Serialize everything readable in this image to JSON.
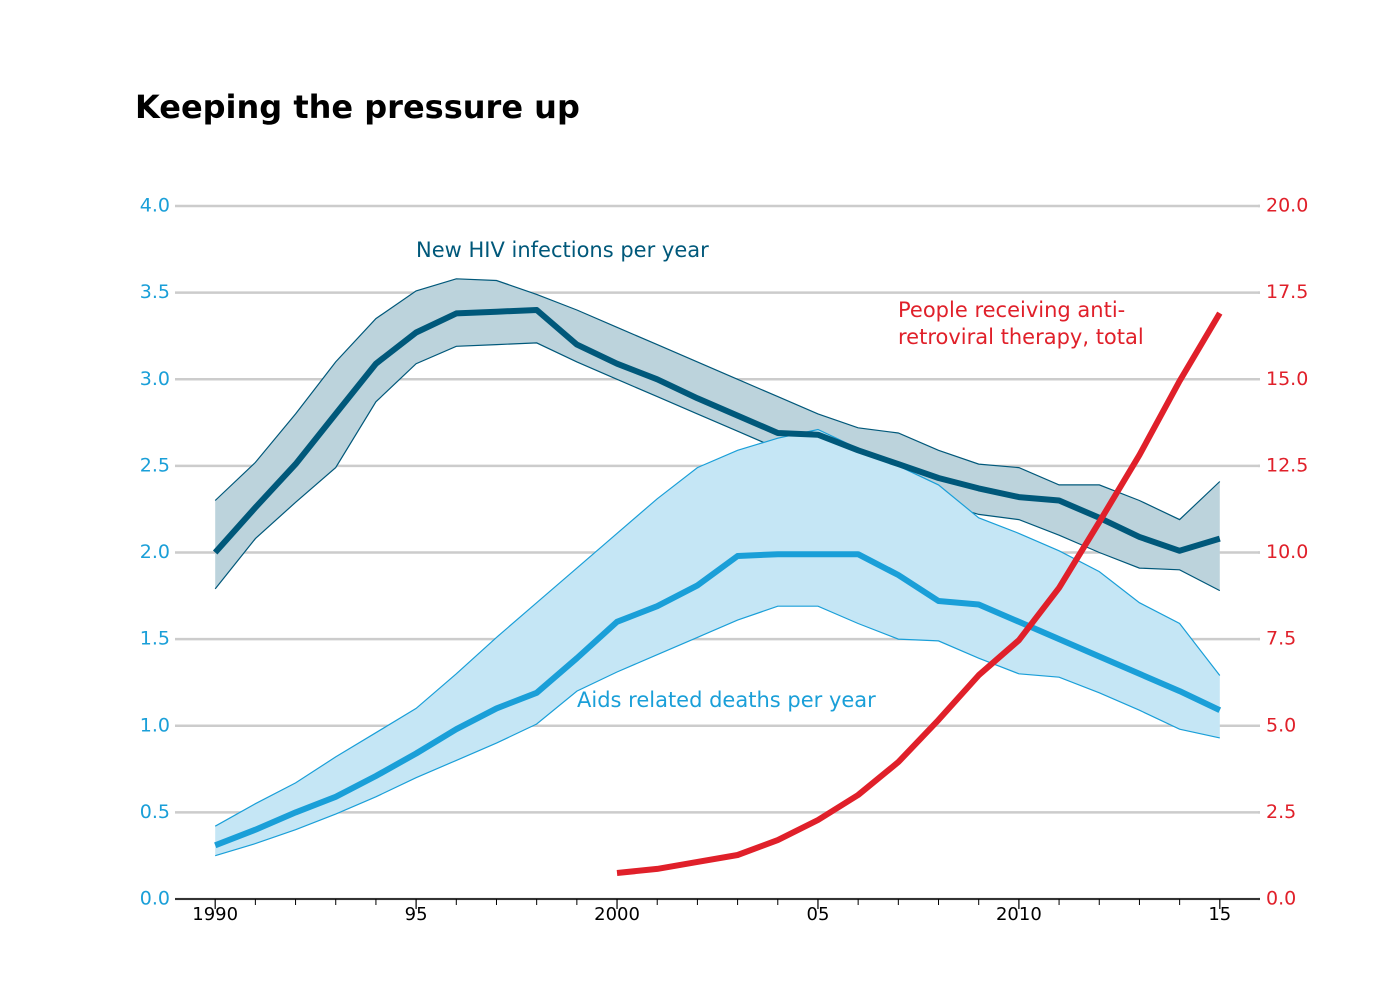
{
  "chart_data": {
    "type": "line",
    "title": "Keeping the pressure up",
    "x": [
      1990,
      1991,
      1992,
      1993,
      1994,
      1995,
      1996,
      1997,
      1998,
      1999,
      2000,
      2001,
      2002,
      2003,
      2004,
      2005,
      2006,
      2007,
      2008,
      2009,
      2010,
      2011,
      2012,
      2013,
      2014,
      2015
    ],
    "xlim": [
      1989,
      2016
    ],
    "xticks": [
      1990,
      {
        "value": 1995,
        "label": "95"
      },
      2000,
      {
        "value": 2005,
        "label": "05"
      },
      2010,
      {
        "value": 2015,
        "label": "15"
      }
    ],
    "xminor_ticks": [
      1991,
      1992,
      1993,
      1994,
      1996,
      1997,
      1998,
      1999,
      2001,
      2002,
      2003,
      2004,
      2006,
      2007,
      2008,
      2009,
      2011,
      2012,
      2013,
      2014
    ],
    "ylim": [
      0,
      4
    ],
    "yticks": [
      {
        "value": 0,
        "label": "0.0"
      },
      0.5,
      {
        "value": 1,
        "label": "1.0"
      },
      1.5,
      {
        "value": 2,
        "label": "2.0"
      },
      2.5,
      {
        "value": 3,
        "label": "3.0"
      },
      3.5,
      {
        "value": 4,
        "label": "4.0"
      }
    ],
    "y_color": "#1a9fd8",
    "y2lim": [
      0,
      20
    ],
    "y2ticks": [
      {
        "value": 0,
        "label": "0.0"
      },
      2.5,
      {
        "value": 5,
        "label": "5.0"
      },
      7.5,
      {
        "value": 10,
        "label": "10.0"
      },
      12.5,
      {
        "value": 15,
        "label": "15.0"
      },
      17.5,
      {
        "value": 20,
        "label": "20.0"
      }
    ],
    "y2_color": "#e0202a",
    "grid": true,
    "series": [
      {
        "name": [
          "New HIV infections per year"
        ],
        "color": "#00587a",
        "band_color": "#bcd3dc",
        "values": [
          2.0,
          2.26,
          2.51,
          2.8,
          3.09,
          3.27,
          3.38,
          3.39,
          3.4,
          3.2,
          3.09,
          3.0,
          2.89,
          2.79,
          2.69,
          2.68,
          2.59,
          2.51,
          2.43,
          2.37,
          2.32,
          2.3,
          2.2,
          2.09,
          2.01,
          2.08
        ],
        "upper": [
          2.3,
          2.52,
          2.8,
          3.1,
          3.35,
          3.51,
          3.58,
          3.57,
          3.49,
          3.4,
          3.3,
          3.2,
          3.1,
          3.0,
          2.9,
          2.8,
          2.72,
          2.69,
          2.59,
          2.51,
          2.49,
          2.39,
          2.39,
          2.3,
          2.19,
          2.41
        ],
        "lower": [
          1.79,
          2.08,
          2.29,
          2.49,
          2.87,
          3.09,
          3.19,
          3.2,
          3.21,
          3.1,
          3.0,
          2.9,
          2.8,
          2.7,
          2.6,
          2.51,
          2.43,
          2.38,
          2.29,
          2.22,
          2.19,
          2.1,
          2.0,
          1.91,
          1.9,
          1.78
        ]
      },
      {
        "name": [
          "Aids related deaths per year"
        ],
        "color": "#1a9fd8",
        "band_color": "#c5e6f5",
        "values": [
          0.31,
          0.4,
          0.5,
          0.59,
          0.71,
          0.84,
          0.98,
          1.1,
          1.19,
          1.39,
          1.6,
          1.69,
          1.81,
          1.98,
          1.99,
          1.99,
          1.99,
          1.87,
          1.72,
          1.7,
          1.6,
          1.5,
          1.4,
          1.3,
          1.2,
          1.09
        ],
        "upper": [
          0.42,
          0.55,
          0.67,
          0.82,
          0.96,
          1.1,
          1.3,
          1.51,
          1.71,
          1.91,
          2.11,
          2.31,
          2.49,
          2.59,
          2.66,
          2.71,
          2.6,
          2.5,
          2.39,
          2.2,
          2.11,
          2.01,
          1.89,
          1.71,
          1.59,
          1.29
        ],
        "lower": [
          0.25,
          0.32,
          0.4,
          0.49,
          0.59,
          0.7,
          0.8,
          0.9,
          1.01,
          1.2,
          1.31,
          1.41,
          1.51,
          1.61,
          1.69,
          1.69,
          1.59,
          1.5,
          1.49,
          1.39,
          1.3,
          1.28,
          1.19,
          1.09,
          0.98,
          0.93
        ]
      },
      {
        "name": [
          "People receiving anti-",
          "retroviral therapy, total"
        ],
        "color": "#e0202a",
        "axis": "y2",
        "x": [
          2000,
          2001,
          2002,
          2003,
          2004,
          2005,
          2006,
          2007,
          2008,
          2009,
          2010,
          2011,
          2012,
          2013,
          2014,
          2015
        ],
        "values": [
          0.75,
          0.87,
          1.07,
          1.27,
          1.7,
          2.28,
          3.0,
          3.95,
          5.17,
          6.46,
          7.47,
          8.98,
          10.88,
          12.81,
          14.95,
          16.91
        ]
      }
    ]
  }
}
